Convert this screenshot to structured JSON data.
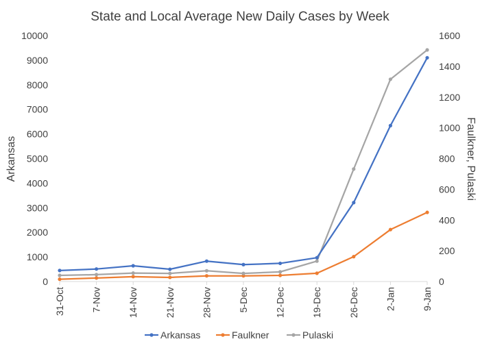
{
  "chart_data": {
    "type": "line",
    "title": "State and Local Average New Daily Cases by Week",
    "ylabel": "Arkansas",
    "y2label": "Faulkner, Pulaski",
    "categories": [
      "31-Oct",
      "7-Nov",
      "14-Nov",
      "21-Nov",
      "28-Nov",
      "5-Dec",
      "12-Dec",
      "19-Dec",
      "26-Dec",
      "2-Jan",
      "9-Jan"
    ],
    "ylim": [
      0,
      10000
    ],
    "yticks": [
      "0",
      "1000",
      "2000",
      "3000",
      "4000",
      "5000",
      "6000",
      "7000",
      "8000",
      "9000",
      "10000"
    ],
    "y2lim": [
      0,
      1600
    ],
    "y2ticks": [
      "0",
      "200",
      "400",
      "600",
      "800",
      "1000",
      "1200",
      "1400",
      "1600"
    ],
    "legend_position": "bottom",
    "grid": false,
    "series": [
      {
        "name": "Arkansas",
        "axis": "left",
        "color": "#4472C4",
        "values": [
          450,
          510,
          640,
          500,
          830,
          690,
          740,
          970,
          3210,
          6340,
          9100
        ]
      },
      {
        "name": "Faulkner",
        "axis": "right",
        "color": "#ED7D31",
        "values": [
          15,
          23,
          32,
          27,
          37,
          37,
          40,
          54,
          162,
          338,
          450
        ]
      },
      {
        "name": "Pulaski",
        "axis": "right",
        "color": "#A5A5A5",
        "values": [
          40,
          45,
          55,
          53,
          70,
          53,
          63,
          133,
          732,
          1316,
          1507
        ]
      }
    ]
  }
}
